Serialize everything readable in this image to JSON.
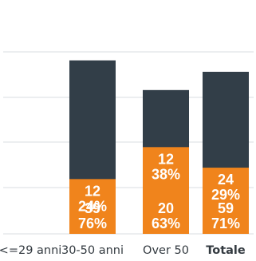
{
  "chart_data": {
    "type": "bar",
    "stacked": true,
    "categories": [
      "<=29 anni",
      "30-50 anni",
      "Over 50",
      "Totale"
    ],
    "series": [
      {
        "color": "#323e48",
        "counts": [
          0,
          39,
          20,
          59
        ],
        "percents": [
          "",
          "76%",
          "63%",
          "71%"
        ],
        "values": [
          0,
          76,
          63,
          71
        ]
      },
      {
        "color": "#f0841c",
        "counts": [
          0,
          12,
          12,
          24
        ],
        "percents": [
          "",
          "24%",
          "38%",
          "29%"
        ],
        "values": [
          0,
          24,
          38,
          29
        ]
      }
    ],
    "bold_categories": [
      "Totale"
    ],
    "ylim": [
      0,
      100
    ],
    "grid": true
  }
}
